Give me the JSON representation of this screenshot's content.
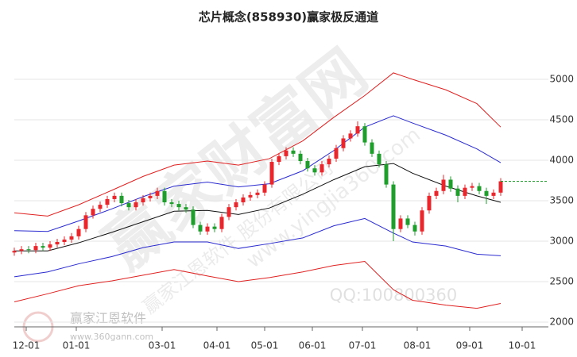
{
  "chart_data": {
    "type": "candlestick",
    "title": "芯片概念(858930)赢家极反通道",
    "xlim": [
      0,
      224
    ],
    "ylim": [
      1950,
      5500
    ],
    "yticks": [
      2000,
      2500,
      3000,
      3500,
      4000,
      4500,
      5000
    ],
    "xticks": [
      {
        "value": 5,
        "label": "12-01"
      },
      {
        "value": 26,
        "label": "01-01"
      },
      {
        "value": 62,
        "label": "03-01"
      },
      {
        "value": 85,
        "label": "04-01"
      },
      {
        "value": 105,
        "label": "05-01"
      },
      {
        "value": 125,
        "label": "06-01"
      },
      {
        "value": 146,
        "label": "07-01"
      },
      {
        "value": 169,
        "label": "08-01"
      },
      {
        "value": 191,
        "label": "09-01"
      },
      {
        "value": 213,
        "label": "10-01"
      }
    ],
    "grid": true,
    "up_color": "#e8262b",
    "down_color": "#1f9e2c",
    "x": [
      0,
      3,
      6,
      9,
      12,
      15,
      18,
      21,
      24,
      27,
      30,
      33,
      36,
      39,
      42,
      45,
      48,
      51,
      54,
      57,
      60,
      63,
      66,
      69,
      72,
      75,
      78,
      81,
      84,
      87,
      90,
      93,
      96,
      99,
      102,
      105,
      108,
      111,
      114,
      117,
      120,
      123,
      126,
      129,
      132,
      135,
      138,
      141,
      144,
      147,
      150,
      153,
      156,
      159,
      162,
      165,
      168,
      171,
      174,
      177,
      180,
      183,
      186,
      189,
      192,
      195,
      198,
      201,
      204
    ],
    "open": [
      2860,
      2880,
      2900,
      2890,
      2940,
      2920,
      2960,
      2990,
      3020,
      3060,
      3150,
      3320,
      3400,
      3450,
      3520,
      3560,
      3470,
      3420,
      3480,
      3530,
      3560,
      3620,
      3480,
      3460,
      3420,
      3390,
      3200,
      3120,
      3180,
      3150,
      3300,
      3420,
      3480,
      3540,
      3570,
      3600,
      3700,
      3980,
      4050,
      4120,
      4080,
      3990,
      3900,
      3850,
      3950,
      4020,
      4150,
      4270,
      4330,
      4420,
      4220,
      4080,
      3950,
      3700,
      3150,
      3280,
      3200,
      3120,
      3380,
      3560,
      3620,
      3760,
      3650,
      3560,
      3660,
      3680,
      3620,
      3560,
      3600
    ],
    "high": [
      2920,
      2940,
      2940,
      2980,
      2980,
      3000,
      3030,
      3060,
      3100,
      3190,
      3360,
      3440,
      3490,
      3560,
      3600,
      3600,
      3510,
      3520,
      3570,
      3600,
      3660,
      3660,
      3520,
      3500,
      3460,
      3430,
      3240,
      3220,
      3220,
      3340,
      3460,
      3520,
      3580,
      3610,
      3640,
      3740,
      4020,
      4090,
      4160,
      4160,
      4120,
      4030,
      3940,
      3990,
      4060,
      4190,
      4310,
      4370,
      4480,
      4460,
      4260,
      4120,
      3990,
      3740,
      3320,
      3320,
      3240,
      3420,
      3600,
      3660,
      3820,
      3800,
      3690,
      3700,
      3720,
      3720,
      3660,
      3640,
      3780
    ],
    "low": [
      2820,
      2840,
      2850,
      2850,
      2880,
      2880,
      2920,
      2950,
      2980,
      3020,
      3110,
      3280,
      3360,
      3410,
      3480,
      3430,
      3380,
      3380,
      3440,
      3490,
      3520,
      3440,
      3420,
      3380,
      3350,
      3160,
      3080,
      3080,
      3110,
      3110,
      3260,
      3380,
      3440,
      3500,
      3530,
      3560,
      3660,
      3940,
      4010,
      4040,
      3950,
      3860,
      3810,
      3810,
      3910,
      3980,
      4110,
      4230,
      4290,
      4180,
      4040,
      3910,
      3660,
      3000,
      3110,
      3160,
      3070,
      3080,
      3340,
      3520,
      3580,
      3610,
      3480,
      3520,
      3620,
      3580,
      3460,
      3520,
      3560
    ],
    "close": [
      2880,
      2900,
      2890,
      2940,
      2920,
      2960,
      2990,
      3020,
      3060,
      3150,
      3320,
      3400,
      3450,
      3520,
      3560,
      3470,
      3420,
      3480,
      3530,
      3560,
      3620,
      3480,
      3460,
      3420,
      3390,
      3200,
      3120,
      3180,
      3150,
      3300,
      3420,
      3480,
      3540,
      3570,
      3600,
      3700,
      3980,
      4050,
      4120,
      4080,
      3990,
      3900,
      3850,
      3950,
      4020,
      4150,
      4270,
      4330,
      4420,
      4220,
      4080,
      3950,
      3700,
      3150,
      3280,
      3200,
      3120,
      3380,
      3560,
      3620,
      3760,
      3650,
      3560,
      3660,
      3680,
      3620,
      3560,
      3600,
      3740
    ],
    "band_x": [
      0,
      14,
      27,
      41,
      54,
      67,
      81,
      94,
      107,
      121,
      134,
      147,
      159,
      167,
      181,
      194,
      204
    ],
    "bands": [
      {
        "color": "#e02020",
        "values": [
          3350,
          3310,
          3450,
          3630,
          3800,
          3940,
          3990,
          3940,
          4020,
          4240,
          4530,
          4800,
          5080,
          5000,
          4870,
          4700,
          4410
        ]
      },
      {
        "color": "#2a2ad0",
        "values": [
          3130,
          3120,
          3250,
          3400,
          3550,
          3680,
          3730,
          3670,
          3710,
          3870,
          4120,
          4410,
          4550,
          4460,
          4310,
          4140,
          3970
        ]
      },
      {
        "color": "#111111",
        "values": [
          2880,
          2880,
          2980,
          3110,
          3240,
          3370,
          3380,
          3330,
          3410,
          3580,
          3760,
          3920,
          3960,
          3840,
          3680,
          3560,
          3480
        ]
      },
      {
        "color": "#2a2ad0",
        "values": [
          2560,
          2620,
          2720,
          2810,
          2920,
          2990,
          2990,
          2910,
          2970,
          3040,
          3190,
          3280,
          3100,
          2990,
          2940,
          2840,
          2820
        ]
      },
      {
        "color": "#e02020",
        "values": [
          2250,
          2350,
          2450,
          2510,
          2580,
          2650,
          2570,
          2500,
          2550,
          2620,
          2700,
          2750,
          2400,
          2270,
          2210,
          2170,
          2230
        ]
      }
    ],
    "last_line": {
      "value": 3740,
      "color": "#1f9e2c"
    },
    "watermarks": {
      "main": "赢家财富网",
      "company": "赢家江恩软件 股份有限公司",
      "site": "www.yingjia360.com",
      "qq": "QQ:100800360",
      "logo": "赢家江恩软件",
      "logo_site": "www.360gann.com"
    }
  }
}
